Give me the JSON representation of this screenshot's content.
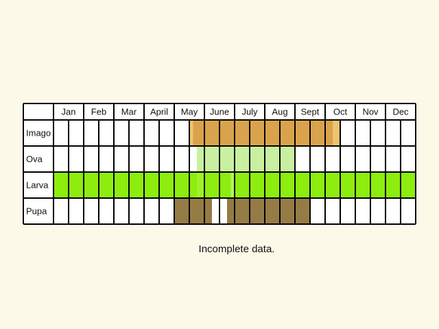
{
  "chart_data": {
    "type": "table",
    "title": "",
    "months": [
      "Jan",
      "Feb",
      "Mar",
      "April",
      "May",
      "June",
      "July",
      "Aug",
      "Sept",
      "Oct",
      "Nov",
      "Dec"
    ],
    "subdivisions_per_month": 2,
    "rows": [
      {
        "name": "Imago",
        "color": "#d9a24c",
        "ranges": [
          {
            "start": 9.0,
            "end": 9.25,
            "color": "#f0c36e"
          },
          {
            "start": 9.25,
            "end": 18.5,
            "color": "#d9a24c"
          },
          {
            "start": 18.5,
            "end": 19.0,
            "color": "#f0c36e"
          }
        ]
      },
      {
        "name": "Ova",
        "color": "#c8f0a0",
        "ranges": [
          {
            "start": 9.5,
            "end": 16.0,
            "color": "#c8f0a0"
          }
        ]
      },
      {
        "name": "Larva",
        "color": "#8ced0e",
        "ranges": [
          {
            "start": 0.0,
            "end": 9.5,
            "color": "#8ced0e"
          },
          {
            "start": 9.5,
            "end": 10.0,
            "color": "#a0f02a"
          },
          {
            "start": 10.0,
            "end": 11.75,
            "color": "#8ced0e"
          },
          {
            "start": 11.75,
            "end": 12.0,
            "color": "#b4f560"
          },
          {
            "start": 12.0,
            "end": 24.0,
            "color": "#8ced0e"
          }
        ]
      },
      {
        "name": "Pupa",
        "color": "#957b45",
        "ranges": [
          {
            "start": 8.0,
            "end": 10.5,
            "color": "#957b45"
          },
          {
            "start": 11.5,
            "end": 17.0,
            "color": "#957b45"
          }
        ]
      }
    ]
  },
  "note": "Incomplete data."
}
